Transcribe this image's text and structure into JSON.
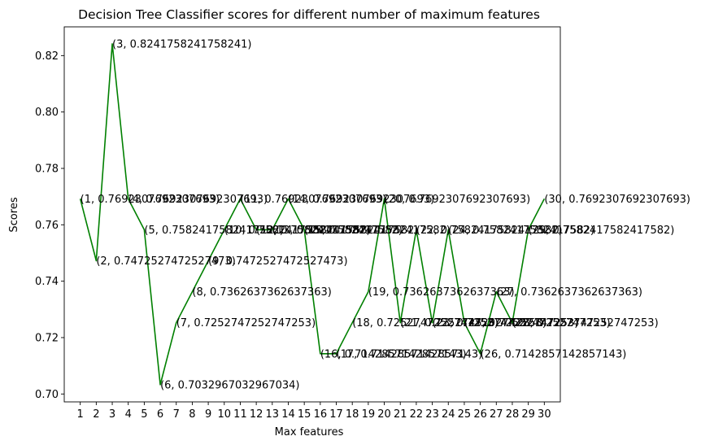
{
  "chart_data": {
    "type": "line",
    "title": "Decision Tree Classifier scores for different number of maximum features",
    "xlabel": "Max features",
    "ylabel": "Scores",
    "x": [
      1,
      2,
      3,
      4,
      5,
      6,
      7,
      8,
      9,
      10,
      11,
      12,
      13,
      14,
      15,
      16,
      17,
      18,
      19,
      20,
      21,
      22,
      23,
      24,
      25,
      26,
      27,
      28,
      29,
      30
    ],
    "series": [
      {
        "values": [
          0.7692307692307693,
          0.7472527472527473,
          0.8241758241758241,
          0.7692307692307693,
          0.7582417582417582,
          0.7032967032967034,
          0.7252747252747253,
          0.7362637362637363,
          0.7472527472527473,
          0.7582417582417582,
          0.7692307692307693,
          0.7582417582417582,
          0.7582417582417582,
          0.7692307692307693,
          0.7582417582417582,
          0.7142857142857143,
          0.7142857142857143,
          0.7252747252747253,
          0.7362637362637363,
          0.7692307692307693,
          0.7252747252747253,
          0.7582417582417582,
          0.7252747252747253,
          0.7582417582417582,
          0.7252747252747253,
          0.7142857142857143,
          0.7362637362637363,
          0.7252747252747253,
          0.7582417582417582,
          0.7692307692307693
        ],
        "color": "#008000"
      }
    ],
    "data_labels": [
      "(1, 0.7692307692307693)",
      "(2, 0.7472527472527473)",
      "(3, 0.8241758241758241)",
      "(4, 0.7692307692307693)",
      "(5, 0.7582417582417582)",
      "(6, 0.7032967032967034)",
      "(7, 0.7252747252747253)",
      "(8, 0.7362637362637363)",
      "(9, 0.7472527472527473)",
      "(10, 0.7582417582417582)",
      "(11, 0.7692307692307693)",
      "(12, 0.7582417582417582)",
      "(13, 0.7582417582417582)",
      "(14, 0.7692307692307693)",
      "(15, 0.7582417582417582)",
      "(16, 0.7142857142857143)",
      "(17, 0.7142857142857143)",
      "(18, 0.7252747252747253)",
      "(19, 0.7362637362637363)",
      "(20, 0.7692307692307693)",
      "(21, 0.7252747252747253)",
      "(22, 0.7582417582417582)",
      "(23, 0.7252747252747253)",
      "(24, 0.7582417582417582)",
      "(25, 0.7252747252747253)",
      "(26, 0.7142857142857143)",
      "(27, 0.7362637362637363)",
      "(28, 0.7252747252747253)",
      "(29, 0.7582417582417582)",
      "(30, 0.7692307692307693)"
    ],
    "x_ticks": [
      "1",
      "2",
      "3",
      "4",
      "5",
      "6",
      "7",
      "8",
      "9",
      "10",
      "11",
      "12",
      "13",
      "14",
      "15",
      "16",
      "17",
      "18",
      "19",
      "20",
      "21",
      "22",
      "23",
      "24",
      "25",
      "26",
      "27",
      "28",
      "29",
      "30"
    ],
    "y_ticks": [
      0.7,
      0.72,
      0.74,
      0.76,
      0.78,
      0.8,
      0.82
    ],
    "y_tick_labels": [
      "0.70",
      "0.72",
      "0.74",
      "0.76",
      "0.78",
      "0.80",
      "0.82"
    ],
    "xlim": [
      0,
      31
    ],
    "ylim": [
      0.6972,
      0.8302
    ],
    "grid": false,
    "legend": "none"
  }
}
